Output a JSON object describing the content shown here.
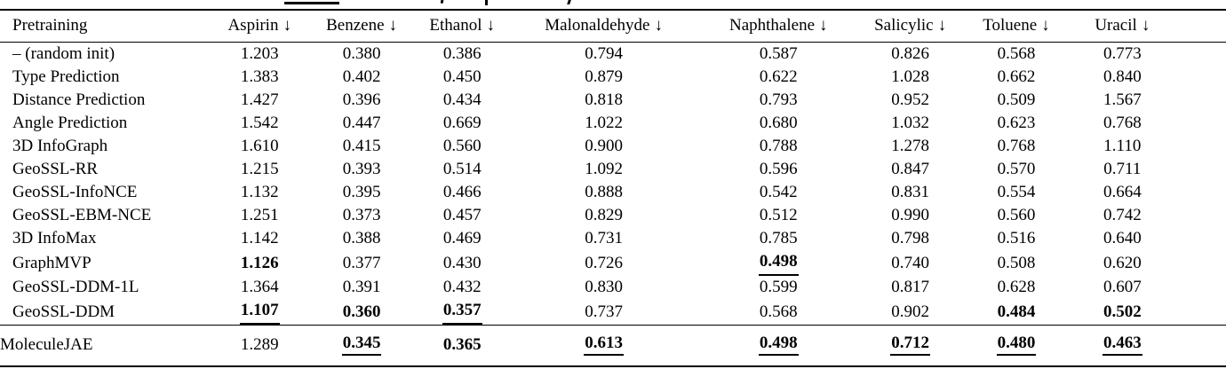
{
  "page": {
    "background": "#ffffff",
    "text_color": "#000000"
  },
  "table": {
    "arrow_char": "↓",
    "columns": [
      {
        "label": "Pretraining"
      },
      {
        "label": "Aspirin"
      },
      {
        "label": "Benzene"
      },
      {
        "label": "Ethanol"
      },
      {
        "label": "Malonaldehyde"
      },
      {
        "label": "Naphthalene"
      },
      {
        "label": "Salicylic"
      },
      {
        "label": "Toluene"
      },
      {
        "label": "Uracil"
      }
    ],
    "rows": [
      {
        "label": "– (random init)",
        "values": [
          {
            "text": "1.203"
          },
          {
            "text": "0.380"
          },
          {
            "text": "0.386"
          },
          {
            "text": "0.794"
          },
          {
            "text": "0.587"
          },
          {
            "text": "0.826"
          },
          {
            "text": "0.568"
          },
          {
            "text": "0.773"
          }
        ]
      },
      {
        "label": "Type Prediction",
        "values": [
          {
            "text": "1.383"
          },
          {
            "text": "0.402"
          },
          {
            "text": "0.450"
          },
          {
            "text": "0.879"
          },
          {
            "text": "0.622"
          },
          {
            "text": "1.028"
          },
          {
            "text": "0.662"
          },
          {
            "text": "0.840"
          }
        ]
      },
      {
        "label": "Distance Prediction",
        "values": [
          {
            "text": "1.427"
          },
          {
            "text": "0.396"
          },
          {
            "text": "0.434"
          },
          {
            "text": "0.818"
          },
          {
            "text": "0.793"
          },
          {
            "text": "0.952"
          },
          {
            "text": "0.509"
          },
          {
            "text": "1.567"
          }
        ]
      },
      {
        "label": "Angle Prediction",
        "values": [
          {
            "text": "1.542"
          },
          {
            "text": "0.447"
          },
          {
            "text": "0.669"
          },
          {
            "text": "1.022"
          },
          {
            "text": "0.680"
          },
          {
            "text": "1.032"
          },
          {
            "text": "0.623"
          },
          {
            "text": "0.768"
          }
        ]
      },
      {
        "label": "3D InfoGraph",
        "values": [
          {
            "text": "1.610"
          },
          {
            "text": "0.415"
          },
          {
            "text": "0.560"
          },
          {
            "text": "0.900"
          },
          {
            "text": "0.788"
          },
          {
            "text": "1.278"
          },
          {
            "text": "0.768"
          },
          {
            "text": "1.110"
          }
        ]
      },
      {
        "label": "GeoSSL-RR",
        "values": [
          {
            "text": "1.215"
          },
          {
            "text": "0.393"
          },
          {
            "text": "0.514"
          },
          {
            "text": "1.092"
          },
          {
            "text": "0.596"
          },
          {
            "text": "0.847"
          },
          {
            "text": "0.570"
          },
          {
            "text": "0.711"
          }
        ]
      },
      {
        "label": "GeoSSL-InfoNCE",
        "values": [
          {
            "text": "1.132"
          },
          {
            "text": "0.395"
          },
          {
            "text": "0.466"
          },
          {
            "text": "0.888"
          },
          {
            "text": "0.542"
          },
          {
            "text": "0.831"
          },
          {
            "text": "0.554"
          },
          {
            "text": "0.664"
          }
        ]
      },
      {
        "label": "GeoSSL-EBM-NCE",
        "values": [
          {
            "text": "1.251"
          },
          {
            "text": "0.373"
          },
          {
            "text": "0.457"
          },
          {
            "text": "0.829"
          },
          {
            "text": "0.512"
          },
          {
            "text": "0.990"
          },
          {
            "text": "0.560"
          },
          {
            "text": "0.742"
          }
        ]
      },
      {
        "label": "3D InfoMax",
        "values": [
          {
            "text": "1.142"
          },
          {
            "text": "0.388"
          },
          {
            "text": "0.469"
          },
          {
            "text": "0.731"
          },
          {
            "text": "0.785"
          },
          {
            "text": "0.798"
          },
          {
            "text": "0.516"
          },
          {
            "text": "0.640"
          }
        ]
      },
      {
        "label": "GraphMVP",
        "values": [
          {
            "text": "1.126",
            "bold": true
          },
          {
            "text": "0.377"
          },
          {
            "text": "0.430"
          },
          {
            "text": "0.726"
          },
          {
            "text": "0.498",
            "bold": true,
            "underline": true
          },
          {
            "text": "0.740"
          },
          {
            "text": "0.508"
          },
          {
            "text": "0.620"
          }
        ]
      },
      {
        "label": "GeoSSL-DDM-1L",
        "values": [
          {
            "text": "1.364"
          },
          {
            "text": "0.391"
          },
          {
            "text": "0.432"
          },
          {
            "text": "0.830"
          },
          {
            "text": "0.599"
          },
          {
            "text": "0.817"
          },
          {
            "text": "0.628"
          },
          {
            "text": "0.607"
          }
        ]
      },
      {
        "label": "GeoSSL-DDM",
        "values": [
          {
            "text": "1.107",
            "bold": true,
            "underline": true
          },
          {
            "text": "0.360",
            "bold": true
          },
          {
            "text": "0.357",
            "bold": true,
            "underline": true
          },
          {
            "text": "0.737"
          },
          {
            "text": "0.568"
          },
          {
            "text": "0.902"
          },
          {
            "text": "0.484",
            "bold": true
          },
          {
            "text": "0.502",
            "bold": true
          }
        ]
      }
    ],
    "footer_row": {
      "label": "MoleculeJAE",
      "values": [
        {
          "text": "1.289"
        },
        {
          "text": "0.345",
          "bold": true,
          "underline": true
        },
        {
          "text": "0.365",
          "bold": true
        },
        {
          "text": "0.613",
          "bold": true,
          "underline": true
        },
        {
          "text": "0.498",
          "bold": true,
          "underline": true
        },
        {
          "text": "0.712",
          "bold": true,
          "underline": true
        },
        {
          "text": "0.480",
          "bold": true,
          "underline": true
        },
        {
          "text": "0.463",
          "bold": true,
          "underline": true
        }
      ]
    }
  }
}
